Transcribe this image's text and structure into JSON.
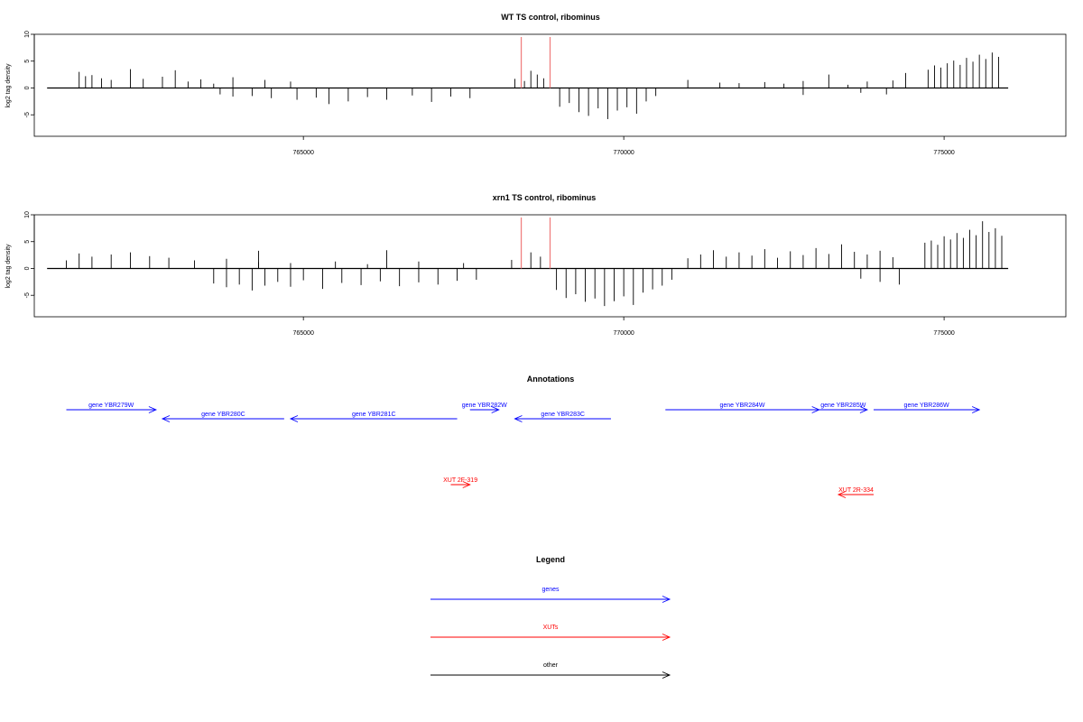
{
  "chart_data": [
    {
      "type": "bar",
      "title": "WT TS control, ribominus",
      "ylabel": "log2 tag density",
      "xlim": [
        760800,
        776900
      ],
      "ylim": [
        -9,
        10
      ],
      "yticks": [
        -5,
        0,
        5,
        10
      ],
      "xticks": [
        765000,
        770000,
        775000
      ],
      "x_tick_labels": [
        "765000",
        "770000",
        "775000"
      ],
      "series": [
        {
          "values": [
            {
              "x": 761500,
              "y": 3.0
            },
            {
              "x": 761600,
              "y": 2.2
            },
            {
              "x": 761700,
              "y": 2.4
            },
            {
              "x": 761850,
              "y": 1.8
            },
            {
              "x": 762000,
              "y": 1.5
            },
            {
              "x": 762300,
              "y": 3.5
            },
            {
              "x": 762500,
              "y": 1.7
            },
            {
              "x": 762800,
              "y": 2.1
            },
            {
              "x": 763000,
              "y": 3.3
            },
            {
              "x": 763200,
              "y": 1.2
            },
            {
              "x": 763400,
              "y": 1.6
            },
            {
              "x": 763600,
              "y": 0.8
            },
            {
              "x": 763900,
              "y": 2.0
            },
            {
              "x": 763700,
              "y": -1.2
            },
            {
              "x": 763900,
              "y": -1.6
            },
            {
              "x": 764200,
              "y": -1.5
            },
            {
              "x": 764500,
              "y": -1.9
            },
            {
              "x": 764900,
              "y": -2.2
            },
            {
              "x": 765200,
              "y": -1.8
            },
            {
              "x": 765400,
              "y": -3.0
            },
            {
              "x": 765700,
              "y": -2.5
            },
            {
              "x": 766000,
              "y": -1.7
            },
            {
              "x": 766300,
              "y": -2.2
            },
            {
              "x": 766700,
              "y": -1.4
            },
            {
              "x": 767000,
              "y": -2.6
            },
            {
              "x": 767300,
              "y": -1.6
            },
            {
              "x": 767600,
              "y": -1.9
            },
            {
              "x": 764400,
              "y": 1.5
            },
            {
              "x": 764800,
              "y": 1.2
            },
            {
              "x": 768300,
              "y": 1.7
            },
            {
              "x": 768450,
              "y": 1.3
            },
            {
              "x": 768550,
              "y": 3.2
            },
            {
              "x": 768650,
              "y": 2.5
            },
            {
              "x": 768750,
              "y": 1.8
            },
            {
              "x": 769000,
              "y": -3.5
            },
            {
              "x": 769150,
              "y": -2.8
            },
            {
              "x": 769300,
              "y": -4.5
            },
            {
              "x": 769450,
              "y": -5.2
            },
            {
              "x": 769600,
              "y": -3.8
            },
            {
              "x": 769750,
              "y": -5.8
            },
            {
              "x": 769900,
              "y": -4.2
            },
            {
              "x": 770050,
              "y": -3.6
            },
            {
              "x": 770200,
              "y": -4.8
            },
            {
              "x": 770350,
              "y": -2.5
            },
            {
              "x": 770500,
              "y": -1.5
            },
            {
              "x": 771000,
              "y": 1.5
            },
            {
              "x": 771500,
              "y": 1.0
            },
            {
              "x": 771800,
              "y": 0.9
            },
            {
              "x": 772200,
              "y": 1.1
            },
            {
              "x": 772500,
              "y": 0.8
            },
            {
              "x": 772800,
              "y": 1.3
            },
            {
              "x": 773200,
              "y": 2.5
            },
            {
              "x": 773500,
              "y": 0.6
            },
            {
              "x": 773800,
              "y": 1.2
            },
            {
              "x": 774200,
              "y": 1.4
            },
            {
              "x": 774400,
              "y": 2.8
            },
            {
              "x": 772800,
              "y": -1.3
            },
            {
              "x": 773700,
              "y": -0.9
            },
            {
              "x": 774100,
              "y": -1.2
            },
            {
              "x": 774750,
              "y": 3.4
            },
            {
              "x": 774850,
              "y": 4.2
            },
            {
              "x": 774950,
              "y": 3.8
            },
            {
              "x": 775050,
              "y": 4.6
            },
            {
              "x": 775150,
              "y": 5.1
            },
            {
              "x": 775250,
              "y": 4.3
            },
            {
              "x": 775350,
              "y": 5.6
            },
            {
              "x": 775450,
              "y": 4.9
            },
            {
              "x": 775550,
              "y": 6.2
            },
            {
              "x": 775650,
              "y": 5.4
            },
            {
              "x": 775750,
              "y": 6.6
            },
            {
              "x": 775850,
              "y": 5.8
            }
          ]
        },
        {
          "name": "marker",
          "color": "#f08080",
          "values": [
            {
              "x": 768400,
              "y": 9.5
            },
            {
              "x": 768850,
              "y": 9.5
            }
          ]
        }
      ]
    },
    {
      "type": "bar",
      "title": "xrn1 TS control, ribominus",
      "ylabel": "log2 tag density",
      "xlim": [
        760800,
        776900
      ],
      "ylim": [
        -9,
        10
      ],
      "yticks": [
        -5,
        0,
        5,
        10
      ],
      "xticks": [
        765000,
        770000,
        775000
      ],
      "x_tick_labels": [
        "765000",
        "770000",
        "775000"
      ],
      "series": [
        {
          "values": [
            {
              "x": 761300,
              "y": 1.5
            },
            {
              "x": 761500,
              "y": 2.8
            },
            {
              "x": 761700,
              "y": 2.2
            },
            {
              "x": 762000,
              "y": 2.6
            },
            {
              "x": 762300,
              "y": 3.0
            },
            {
              "x": 762600,
              "y": 2.3
            },
            {
              "x": 762900,
              "y": 2.0
            },
            {
              "x": 763300,
              "y": 1.5
            },
            {
              "x": 763800,
              "y": 1.8
            },
            {
              "x": 764300,
              "y": 1.2
            },
            {
              "x": 764800,
              "y": 1.0
            },
            {
              "x": 765500,
              "y": 1.3
            },
            {
              "x": 766000,
              "y": 0.8
            },
            {
              "x": 766800,
              "y": 1.3
            },
            {
              "x": 767500,
              "y": 1.0
            },
            {
              "x": 763600,
              "y": -2.8
            },
            {
              "x": 763800,
              "y": -3.5
            },
            {
              "x": 764000,
              "y": -3.0
            },
            {
              "x": 764200,
              "y": -4.1
            },
            {
              "x": 764400,
              "y": -3.2
            },
            {
              "x": 764600,
              "y": -2.5
            },
            {
              "x": 764800,
              "y": -3.4
            },
            {
              "x": 765000,
              "y": -2.2
            },
            {
              "x": 765300,
              "y": -3.8
            },
            {
              "x": 765600,
              "y": -2.7
            },
            {
              "x": 765900,
              "y": -3.1
            },
            {
              "x": 766200,
              "y": -2.4
            },
            {
              "x": 766500,
              "y": -3.3
            },
            {
              "x": 766800,
              "y": -2.6
            },
            {
              "x": 767100,
              "y": -3.0
            },
            {
              "x": 767400,
              "y": -2.3
            },
            {
              "x": 767700,
              "y": -2.1
            },
            {
              "x": 764300,
              "y": 3.3
            },
            {
              "x": 766300,
              "y": 3.4
            },
            {
              "x": 768250,
              "y": 1.6
            },
            {
              "x": 768400,
              "y": 2.5
            },
            {
              "x": 768550,
              "y": 3.0
            },
            {
              "x": 768700,
              "y": 2.2
            },
            {
              "x": 768850,
              "y": 1.8
            },
            {
              "x": 768950,
              "y": -4.0
            },
            {
              "x": 769100,
              "y": -5.5
            },
            {
              "x": 769250,
              "y": -4.8
            },
            {
              "x": 769400,
              "y": -6.2
            },
            {
              "x": 769550,
              "y": -5.6
            },
            {
              "x": 769700,
              "y": -7.0
            },
            {
              "x": 769850,
              "y": -6.1
            },
            {
              "x": 770000,
              "y": -5.2
            },
            {
              "x": 770150,
              "y": -6.8
            },
            {
              "x": 770300,
              "y": -4.5
            },
            {
              "x": 770450,
              "y": -3.9
            },
            {
              "x": 770600,
              "y": -3.2
            },
            {
              "x": 770750,
              "y": -2.1
            },
            {
              "x": 771000,
              "y": 1.9
            },
            {
              "x": 771200,
              "y": 2.6
            },
            {
              "x": 771400,
              "y": 3.4
            },
            {
              "x": 771600,
              "y": 2.2
            },
            {
              "x": 771800,
              "y": 3.0
            },
            {
              "x": 772000,
              "y": 2.4
            },
            {
              "x": 772200,
              "y": 3.6
            },
            {
              "x": 772400,
              "y": 2.0
            },
            {
              "x": 772600,
              "y": 3.2
            },
            {
              "x": 772800,
              "y": 2.5
            },
            {
              "x": 773000,
              "y": 3.8
            },
            {
              "x": 773200,
              "y": 2.7
            },
            {
              "x": 773400,
              "y": 4.5
            },
            {
              "x": 773600,
              "y": 3.1
            },
            {
              "x": 773800,
              "y": 2.6
            },
            {
              "x": 774000,
              "y": 3.3
            },
            {
              "x": 774200,
              "y": 2.1
            },
            {
              "x": 773700,
              "y": -1.9
            },
            {
              "x": 774000,
              "y": -2.5
            },
            {
              "x": 774300,
              "y": -3.0
            },
            {
              "x": 774700,
              "y": 4.8
            },
            {
              "x": 774800,
              "y": 5.2
            },
            {
              "x": 774900,
              "y": 4.4
            },
            {
              "x": 775000,
              "y": 6.0
            },
            {
              "x": 775100,
              "y": 5.4
            },
            {
              "x": 775200,
              "y": 6.6
            },
            {
              "x": 775300,
              "y": 5.7
            },
            {
              "x": 775400,
              "y": 7.2
            },
            {
              "x": 775500,
              "y": 6.2
            },
            {
              "x": 775600,
              "y": 8.8
            },
            {
              "x": 775700,
              "y": 6.8
            },
            {
              "x": 775800,
              "y": 7.5
            },
            {
              "x": 775900,
              "y": 6.1
            }
          ]
        },
        {
          "name": "marker",
          "color": "#f08080",
          "values": [
            {
              "x": 768400,
              "y": 9.5
            },
            {
              "x": 768850,
              "y": 9.5
            }
          ]
        }
      ]
    }
  ],
  "annotations": {
    "title": "Annotations",
    "genes": [
      {
        "label": "gene YBR279W",
        "start": 761300,
        "end": 762700,
        "strand": "+"
      },
      {
        "label": "gene YBR280C",
        "start": 762800,
        "end": 764700,
        "strand": "-"
      },
      {
        "label": "gene YBR281C",
        "start": 764800,
        "end": 767400,
        "strand": "-"
      },
      {
        "label": "gene YBR282W",
        "start": 767600,
        "end": 768050,
        "strand": "+"
      },
      {
        "label": "gene YBR283C",
        "start": 768300,
        "end": 769800,
        "strand": "-"
      },
      {
        "label": "gene YBR284W",
        "start": 770650,
        "end": 773050,
        "strand": "+"
      },
      {
        "label": "gene YBR285W",
        "start": 773050,
        "end": 773800,
        "strand": "+"
      },
      {
        "label": "gene YBR286W",
        "start": 773900,
        "end": 775550,
        "strand": "+"
      }
    ],
    "xuts": [
      {
        "label": "XUT 2F-319",
        "start": 767300,
        "end": 767600,
        "strand": "+"
      },
      {
        "label": "XUT 2R-334",
        "start": 773350,
        "end": 773900,
        "strand": "-"
      }
    ],
    "colors": {
      "gene": "#0000ff",
      "xut": "#ff0000"
    }
  },
  "legend": {
    "title": "Legend",
    "items": [
      {
        "label": "genes",
        "color": "#0000ff"
      },
      {
        "label": "XUTs",
        "color": "#ff0000"
      },
      {
        "label": "other",
        "color": "#000000"
      }
    ]
  }
}
